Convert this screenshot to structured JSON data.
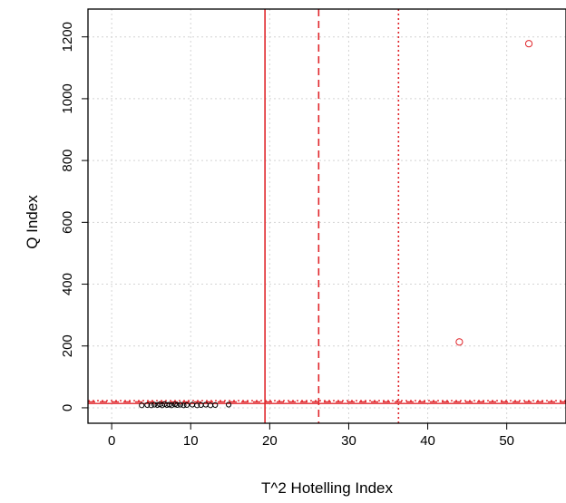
{
  "chart_data": {
    "type": "scatter",
    "title": "",
    "xlabel": "T^2 Hotelling Index",
    "ylabel": "Q Index",
    "xlim": [
      -3,
      57.5
    ],
    "ylim": [
      -50,
      1290
    ],
    "x_ticks": [
      0,
      10,
      20,
      30,
      40,
      50
    ],
    "y_ticks": [
      0,
      200,
      400,
      600,
      800,
      1000,
      1200
    ],
    "grid": true,
    "series": [
      {
        "color": "#000000",
        "marker": "open-circle",
        "points": [
          [
            3.8,
            8
          ],
          [
            4.5,
            9
          ],
          [
            5.0,
            8
          ],
          [
            5.4,
            10
          ],
          [
            5.8,
            9
          ],
          [
            6.1,
            11
          ],
          [
            6.4,
            8
          ],
          [
            6.7,
            12
          ],
          [
            7.0,
            9
          ],
          [
            7.3,
            10
          ],
          [
            7.6,
            8
          ],
          [
            8.0,
            11
          ],
          [
            8.3,
            9
          ],
          [
            8.7,
            10
          ],
          [
            9.1,
            8
          ],
          [
            9.5,
            9
          ],
          [
            10.2,
            10
          ],
          [
            10.8,
            8
          ],
          [
            11.3,
            9
          ],
          [
            11.9,
            10
          ],
          [
            12.5,
            8
          ],
          [
            13.1,
            9
          ],
          [
            14.8,
            10
          ]
        ]
      },
      {
        "color": "#e0262b",
        "marker": "open-circle",
        "points": [
          [
            44.0,
            213
          ],
          [
            52.8,
            1178
          ]
        ]
      }
    ],
    "reference_lines": {
      "color": "#e0262b",
      "vertical": [
        {
          "x": 19.4,
          "style": "solid"
        },
        {
          "x": 26.2,
          "style": "dashed"
        },
        {
          "x": 36.3,
          "style": "dotted"
        }
      ],
      "horizontal": [
        {
          "y": 14,
          "style": "solid"
        },
        {
          "y": 19,
          "style": "dashed"
        },
        {
          "y": 23,
          "style": "dotted"
        }
      ]
    }
  }
}
